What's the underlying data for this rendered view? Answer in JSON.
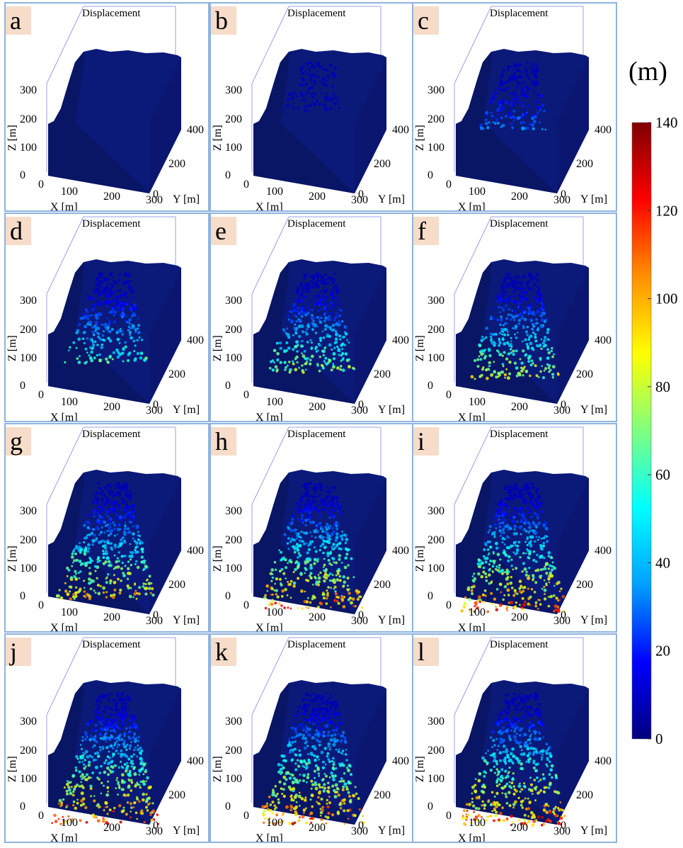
{
  "figure": {
    "colorbar": {
      "unit_label": "(m)",
      "ticks": [
        "140",
        "120",
        "100",
        "80",
        "60",
        "40",
        "20",
        "0"
      ],
      "range": [
        0,
        140
      ],
      "colormap": [
        "#00007f",
        "#0000ff",
        "#00a0ff",
        "#00ffff",
        "#7fff7f",
        "#ffff00",
        "#ff9000",
        "#ff0000",
        "#7f0000"
      ]
    }
  },
  "chart_data": {
    "type": "scatter",
    "layout": "small-multiples",
    "description_source": "3D particle displacement snapshots",
    "x_axis": {
      "label": "X [m]",
      "ticks": [
        "0",
        "100",
        "200",
        "300"
      ]
    },
    "y_axis": {
      "label": "Y [m]",
      "ticks": [
        "0",
        "200",
        "400"
      ]
    },
    "z_axis": {
      "label": "Z [m]",
      "ticks": [
        "0",
        "100",
        "200",
        "300"
      ]
    },
    "panels": [
      {
        "tag": "a",
        "title": "Displacement",
        "max_displacement": 0
      },
      {
        "tag": "b",
        "title": "Displacement",
        "max_displacement": 10
      },
      {
        "tag": "c",
        "title": "Displacement",
        "max_displacement": 40
      },
      {
        "tag": "d",
        "title": "Displacement",
        "max_displacement": 75
      },
      {
        "tag": "e",
        "title": "Displacement",
        "max_displacement": 90
      },
      {
        "tag": "f",
        "title": "Displacement",
        "max_displacement": 100
      },
      {
        "tag": "g",
        "title": "Displacement",
        "max_displacement": 115
      },
      {
        "tag": "h",
        "title": "Displacement",
        "max_displacement": 130
      },
      {
        "tag": "i",
        "title": "Displacement",
        "max_displacement": 135
      },
      {
        "tag": "j",
        "title": "Displacement",
        "max_displacement": 138
      },
      {
        "tag": "k",
        "title": "Displacement",
        "max_displacement": 138
      },
      {
        "tag": "l",
        "title": "Displacement",
        "max_displacement": 140
      }
    ]
  }
}
